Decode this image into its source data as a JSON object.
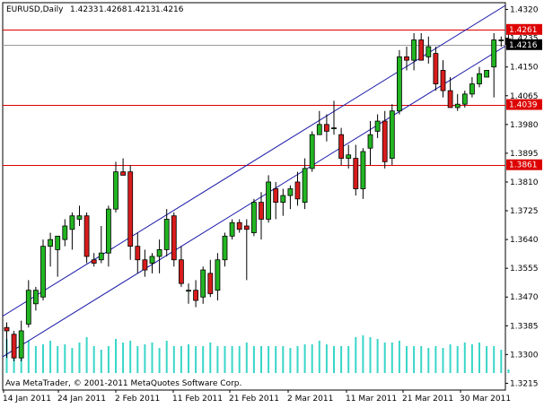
{
  "header": {
    "symbol": "EURUSD,Daily",
    "open": "1.4233",
    "high": "1.4268",
    "low": "1.4213",
    "close": "1.4216"
  },
  "copyright": "Ava MetaTrader, © 2001-2011 MetaQuotes Software Corp.",
  "colors": {
    "bull": "#22b522",
    "bear": "#d81c1c",
    "candle_outline": "#000000",
    "volume": "#39d6c8",
    "channel": "#1a1aa8",
    "level": "#dd0000",
    "current_price_line": "#9a9a9a",
    "current_price_label_bg": "#000000"
  },
  "price_axis": {
    "ticks": [
      "1.4320",
      "1.4235",
      "1.4150",
      "1.4065",
      "1.3980",
      "1.3895",
      "1.3810",
      "1.3725",
      "1.3640",
      "1.3555",
      "1.3470",
      "1.3385",
      "1.3300",
      "1.3215"
    ]
  },
  "time_axis": {
    "labels": [
      "14 Jan 2011",
      "24 Jan 2011",
      "2 Feb 2011",
      "11 Feb 2011",
      "21 Feb 2011",
      "2 Mar 2011",
      "11 Mar 2011",
      "21 Mar 2011",
      "30 Mar 2011"
    ]
  },
  "levels": [
    {
      "label": "1.4261",
      "price": 1.4261
    },
    {
      "label": "1.4039",
      "price": 1.4039
    },
    {
      "label": "1.3861",
      "price": 1.3861
    }
  ],
  "current_price": {
    "label": "1.4216",
    "price": 1.4216
  },
  "chart_data": {
    "type": "candlestick",
    "symbol": "EURUSD",
    "timeframe": "Daily",
    "y_range": [
      1.3195,
      1.434
    ],
    "candles": [
      {
        "o": 1.338,
        "h": 1.3395,
        "l": 1.329,
        "c": 1.337
      },
      {
        "o": 1.336,
        "h": 1.337,
        "l": 1.328,
        "c": 1.329
      },
      {
        "o": 1.329,
        "h": 1.34,
        "l": 1.328,
        "c": 1.337
      },
      {
        "o": 1.339,
        "h": 1.352,
        "l": 1.338,
        "c": 1.349
      },
      {
        "o": 1.345,
        "h": 1.35,
        "l": 1.343,
        "c": 1.349
      },
      {
        "o": 1.347,
        "h": 1.364,
        "l": 1.346,
        "c": 1.362
      },
      {
        "o": 1.362,
        "h": 1.366,
        "l": 1.356,
        "c": 1.364
      },
      {
        "o": 1.361,
        "h": 1.365,
        "l": 1.353,
        "c": 1.365
      },
      {
        "o": 1.364,
        "h": 1.37,
        "l": 1.362,
        "c": 1.368
      },
      {
        "o": 1.367,
        "h": 1.372,
        "l": 1.361,
        "c": 1.371
      },
      {
        "o": 1.37,
        "h": 1.374,
        "l": 1.368,
        "c": 1.371
      },
      {
        "o": 1.371,
        "h": 1.372,
        "l": 1.357,
        "c": 1.359
      },
      {
        "o": 1.358,
        "h": 1.36,
        "l": 1.356,
        "c": 1.357
      },
      {
        "o": 1.358,
        "h": 1.368,
        "l": 1.357,
        "c": 1.36
      },
      {
        "o": 1.36,
        "h": 1.374,
        "l": 1.356,
        "c": 1.373
      },
      {
        "o": 1.373,
        "h": 1.387,
        "l": 1.372,
        "c": 1.384
      },
      {
        "o": 1.384,
        "h": 1.388,
        "l": 1.383,
        "c": 1.383
      },
      {
        "o": 1.384,
        "h": 1.386,
        "l": 1.358,
        "c": 1.362
      },
      {
        "o": 1.362,
        "h": 1.366,
        "l": 1.354,
        "c": 1.358
      },
      {
        "o": 1.358,
        "h": 1.361,
        "l": 1.353,
        "c": 1.355
      },
      {
        "o": 1.357,
        "h": 1.36,
        "l": 1.354,
        "c": 1.359
      },
      {
        "o": 1.359,
        "h": 1.364,
        "l": 1.354,
        "c": 1.361
      },
      {
        "o": 1.361,
        "h": 1.373,
        "l": 1.359,
        "c": 1.37
      },
      {
        "o": 1.371,
        "h": 1.372,
        "l": 1.356,
        "c": 1.358
      },
      {
        "o": 1.358,
        "h": 1.362,
        "l": 1.35,
        "c": 1.351
      },
      {
        "o": 1.349,
        "h": 1.351,
        "l": 1.345,
        "c": 1.349
      },
      {
        "o": 1.349,
        "h": 1.352,
        "l": 1.344,
        "c": 1.346
      },
      {
        "o": 1.347,
        "h": 1.356,
        "l": 1.345,
        "c": 1.355
      },
      {
        "o": 1.354,
        "h": 1.358,
        "l": 1.347,
        "c": 1.348
      },
      {
        "o": 1.349,
        "h": 1.36,
        "l": 1.346,
        "c": 1.358
      },
      {
        "o": 1.358,
        "h": 1.366,
        "l": 1.356,
        "c": 1.365
      },
      {
        "o": 1.365,
        "h": 1.37,
        "l": 1.364,
        "c": 1.369
      },
      {
        "o": 1.369,
        "h": 1.37,
        "l": 1.366,
        "c": 1.367
      },
      {
        "o": 1.368,
        "h": 1.37,
        "l": 1.352,
        "c": 1.367
      },
      {
        "o": 1.366,
        "h": 1.376,
        "l": 1.365,
        "c": 1.375
      },
      {
        "o": 1.375,
        "h": 1.378,
        "l": 1.364,
        "c": 1.37
      },
      {
        "o": 1.37,
        "h": 1.383,
        "l": 1.369,
        "c": 1.381
      },
      {
        "o": 1.379,
        "h": 1.381,
        "l": 1.37,
        "c": 1.375
      },
      {
        "o": 1.375,
        "h": 1.379,
        "l": 1.371,
        "c": 1.377
      },
      {
        "o": 1.377,
        "h": 1.38,
        "l": 1.373,
        "c": 1.379
      },
      {
        "o": 1.381,
        "h": 1.384,
        "l": 1.374,
        "c": 1.376
      },
      {
        "o": 1.375,
        "h": 1.388,
        "l": 1.373,
        "c": 1.385
      },
      {
        "o": 1.385,
        "h": 1.396,
        "l": 1.384,
        "c": 1.395
      },
      {
        "o": 1.395,
        "h": 1.402,
        "l": 1.395,
        "c": 1.398
      },
      {
        "o": 1.398,
        "h": 1.401,
        "l": 1.393,
        "c": 1.396
      },
      {
        "o": 1.397,
        "h": 1.405,
        "l": 1.395,
        "c": 1.397
      },
      {
        "o": 1.395,
        "h": 1.397,
        "l": 1.386,
        "c": 1.388
      },
      {
        "o": 1.388,
        "h": 1.392,
        "l": 1.385,
        "c": 1.389
      },
      {
        "o": 1.388,
        "h": 1.392,
        "l": 1.377,
        "c": 1.379
      },
      {
        "o": 1.379,
        "h": 1.391,
        "l": 1.376,
        "c": 1.39
      },
      {
        "o": 1.391,
        "h": 1.399,
        "l": 1.386,
        "c": 1.395
      },
      {
        "o": 1.396,
        "h": 1.401,
        "l": 1.394,
        "c": 1.399
      },
      {
        "o": 1.399,
        "h": 1.402,
        "l": 1.385,
        "c": 1.387
      },
      {
        "o": 1.388,
        "h": 1.404,
        "l": 1.386,
        "c": 1.402
      },
      {
        "o": 1.402,
        "h": 1.42,
        "l": 1.401,
        "c": 1.418
      },
      {
        "o": 1.418,
        "h": 1.421,
        "l": 1.414,
        "c": 1.417
      },
      {
        "o": 1.417,
        "h": 1.425,
        "l": 1.414,
        "c": 1.423
      },
      {
        "o": 1.423,
        "h": 1.425,
        "l": 1.417,
        "c": 1.417
      },
      {
        "o": 1.418,
        "h": 1.424,
        "l": 1.416,
        "c": 1.421
      },
      {
        "o": 1.419,
        "h": 1.421,
        "l": 1.408,
        "c": 1.41
      },
      {
        "o": 1.414,
        "h": 1.417,
        "l": 1.406,
        "c": 1.408
      },
      {
        "o": 1.408,
        "h": 1.412,
        "l": 1.403,
        "c": 1.403
      },
      {
        "o": 1.403,
        "h": 1.407,
        "l": 1.402,
        "c": 1.404
      },
      {
        "o": 1.404,
        "h": 1.408,
        "l": 1.403,
        "c": 1.407
      },
      {
        "o": 1.407,
        "h": 1.412,
        "l": 1.406,
        "c": 1.41
      },
      {
        "o": 1.41,
        "h": 1.415,
        "l": 1.409,
        "c": 1.413
      },
      {
        "o": 1.412,
        "h": 1.414,
        "l": 1.412,
        "c": 1.414
      },
      {
        "o": 1.415,
        "h": 1.425,
        "l": 1.406,
        "c": 1.423
      },
      {
        "o": 1.423,
        "h": 1.424,
        "l": 1.421,
        "c": 1.423
      },
      {
        "o": 1.4233,
        "h": 1.4268,
        "l": 1.4213,
        "c": 1.4216
      }
    ],
    "volume": [
      0.38,
      0.3,
      0.3,
      0.36,
      0.3,
      0.32,
      0.36,
      0.3,
      0.32,
      0.28,
      0.34,
      0.4,
      0.3,
      0.26,
      0.3,
      0.38,
      0.34,
      0.36,
      0.3,
      0.32,
      0.34,
      0.28,
      0.36,
      0.3,
      0.3,
      0.32,
      0.3,
      0.3,
      0.34,
      0.3,
      0.3,
      0.3,
      0.3,
      0.34,
      0.3,
      0.3,
      0.3,
      0.3,
      0.3,
      0.28,
      0.3,
      0.32,
      0.32,
      0.36,
      0.32,
      0.3,
      0.3,
      0.3,
      0.4,
      0.42,
      0.4,
      0.38,
      0.34,
      0.34,
      0.36,
      0.3,
      0.3,
      0.3,
      0.28,
      0.3,
      0.28,
      0.32,
      0.3,
      0.34,
      0.32,
      0.34,
      0.3,
      0.3,
      0.26,
      0.04
    ],
    "channel": {
      "lower": {
        "x1": 0,
        "p1": 1.33,
        "x2": 70,
        "p2": 1.423
      },
      "upper": {
        "x1": 0,
        "p1": 1.342,
        "x2": 70,
        "p2": 1.435
      }
    }
  }
}
